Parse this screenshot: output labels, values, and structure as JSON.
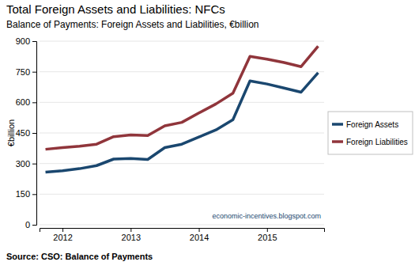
{
  "chart_data": {
    "type": "line",
    "title": "Total Foreign Assets and Liabilities: NFCs",
    "subtitle": "Balance of Payments: Foreign Assets and Liabilities, €billion",
    "ylabel": "€billion",
    "source": "Source: CSO: Balance of Payments",
    "annotations": [
      "economic-incentives.blogspot.com"
    ],
    "categories": [
      null,
      "2012",
      null,
      null,
      null,
      "2013",
      null,
      null,
      null,
      "2014",
      null,
      null,
      null,
      "2015",
      null,
      null,
      null
    ],
    "series": [
      {
        "name": "Foreign Assets",
        "color": "#1a476f",
        "values": [
          258,
          265,
          275,
          290,
          322,
          325,
          320,
          378,
          395,
          430,
          465,
          515,
          705,
          690,
          670,
          650,
          745
        ]
      },
      {
        "name": "Foreign Liabilities",
        "color": "#90353b",
        "values": [
          370,
          378,
          385,
          395,
          432,
          440,
          437,
          485,
          502,
          548,
          592,
          645,
          825,
          812,
          795,
          775,
          875
        ]
      }
    ],
    "ylim": [
      0,
      900
    ],
    "yticks": [
      0,
      150,
      300,
      450,
      600,
      750,
      900
    ],
    "grid": true,
    "legend": "right"
  }
}
